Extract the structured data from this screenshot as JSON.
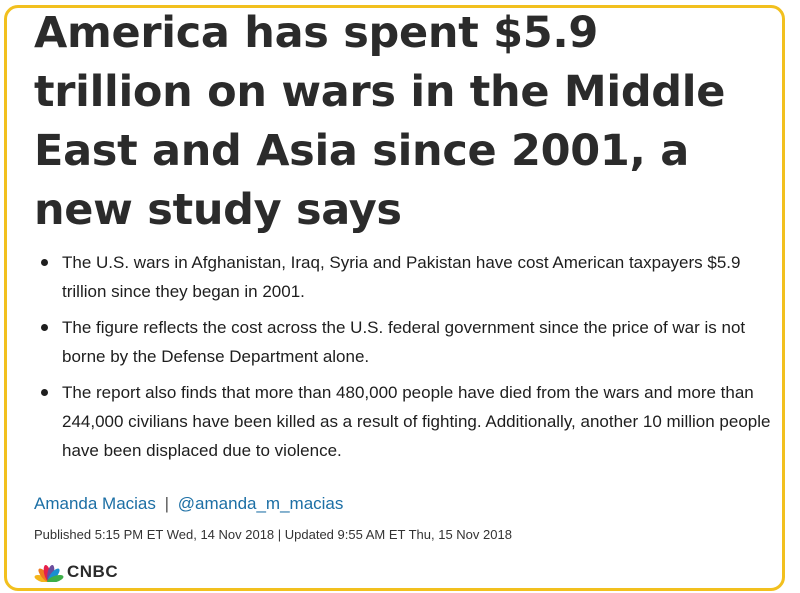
{
  "article": {
    "headline": "America has spent $5.9 trillion on wars in the Middle East and Asia since 2001, a new study says",
    "bullets": [
      "The U.S. wars in Afghanistan, Iraq, Syria and Pakistan have cost American taxpayers $5.9 trillion since they began in 2001.",
      "The figure reflects the cost across the U.S. federal government since the price of war is not borne by the Defense Department alone.",
      "The report also finds that more than 480,000 people have died from the wars and more than 244,000 civilians have been killed as a result of fighting. Additionally, another 10 million people have been displaced due to violence."
    ],
    "author_name": "Amanda Macias",
    "byline_separator": "|",
    "author_handle": "@amanda_m_macias",
    "published": "Published 5:15 PM ET Wed, 14 Nov 2018 | Updated 9:55 AM ET Thu, 15 Nov 2018"
  },
  "brand": {
    "logo_text": "CNBC",
    "logo_icon": "nbc-peacock-icon",
    "frame_color": "#f2c01e",
    "link_color": "#1c6fa5",
    "peacock_colors": [
      "#f4b51b",
      "#ef7b1f",
      "#e6204a",
      "#6c4d9c",
      "#1a8fd1",
      "#3dae49"
    ]
  }
}
